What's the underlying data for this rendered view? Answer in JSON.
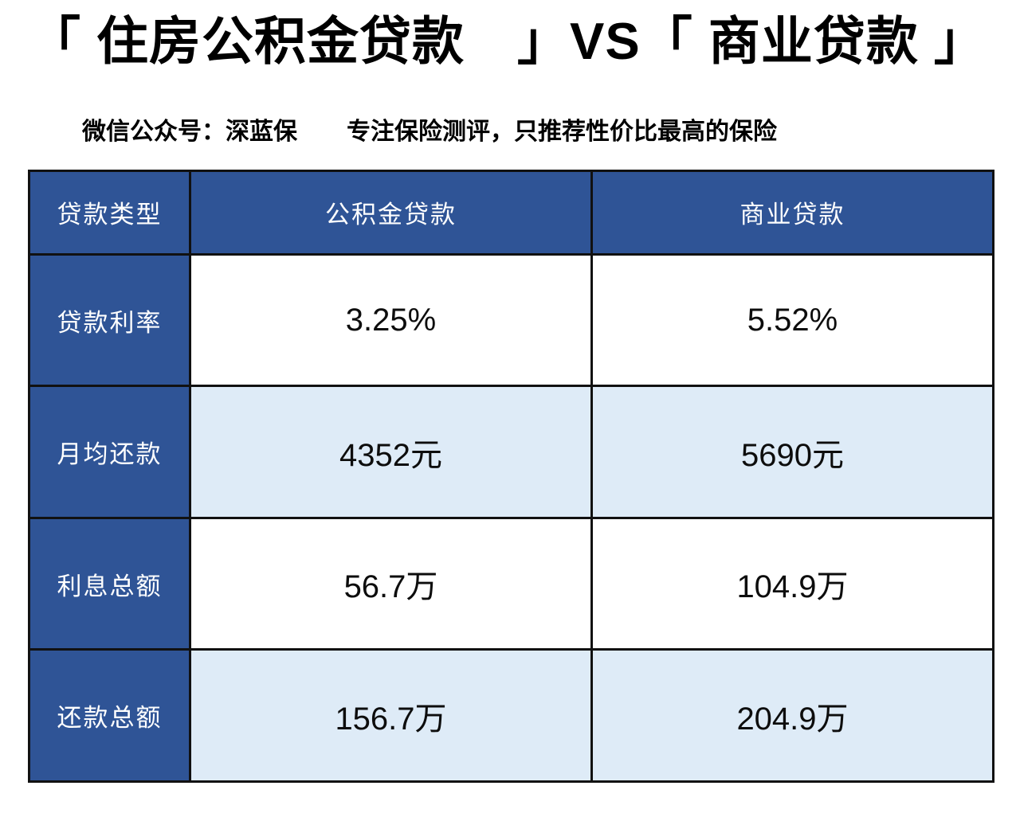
{
  "header": {
    "title": "「 住房公积金贷款　」VS「 商业贷款 」",
    "wechat_account": "微信公众号：深蓝保",
    "slogan": "专注保险测评，只推荐性价比最高的保险"
  },
  "chart_data": {
    "type": "table",
    "title": "住房公积金贷款 VS 商业贷款",
    "columns": [
      "贷款类型",
      "公积金贷款",
      "商业贷款"
    ],
    "rows": [
      {
        "label": "贷款利率",
        "values": [
          "3.25%",
          "5.52%"
        ]
      },
      {
        "label": "月均还款",
        "values": [
          "4352元",
          "5690元"
        ]
      },
      {
        "label": "利息总额",
        "values": [
          "56.7万",
          "104.9万"
        ]
      },
      {
        "label": "还款总额",
        "values": [
          "156.7万",
          "204.9万"
        ]
      }
    ],
    "layout": {
      "header_fill": "dark-blue",
      "label_column_fill": "dark-blue",
      "data_row_fills": [
        "white",
        "light-blue",
        "white",
        "light-blue"
      ],
      "grid": "on"
    }
  },
  "colors": {
    "header_blue": "#2F5496",
    "row_light_blue": "#DEEBF7",
    "row_white": "#FFFFFF",
    "border": "#111111",
    "title_text": "#000000",
    "header_text": "#FFFFFF",
    "value_text": "#0D0D0D"
  }
}
